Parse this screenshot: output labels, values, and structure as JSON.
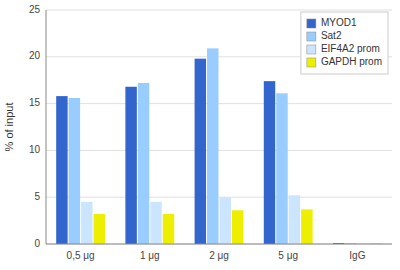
{
  "chart_data": {
    "type": "bar",
    "categories": [
      "0,5 μg",
      "1 μg",
      "2 μg",
      "5 μg",
      "IgG"
    ],
    "series": [
      {
        "name": "MYOD1",
        "color": "#3366cc",
        "values": [
          15.8,
          16.8,
          19.8,
          17.4,
          0.1
        ]
      },
      {
        "name": "Sat2",
        "color": "#99ccff",
        "values": [
          15.6,
          17.2,
          20.9,
          16.1,
          0.1
        ]
      },
      {
        "name": "EIF4A2 prom",
        "color": "#cce5ff",
        "values": [
          4.5,
          4.5,
          5.0,
          5.2,
          0.1
        ]
      },
      {
        "name": "GAPDH prom",
        "color": "#eeee00",
        "values": [
          3.2,
          3.2,
          3.6,
          3.7,
          0.1
        ]
      }
    ],
    "ylabel": "% of input",
    "ylim": [
      0,
      25
    ],
    "yticks": [
      0,
      5,
      10,
      15,
      20,
      25
    ],
    "grid": true,
    "legend": "upper right"
  }
}
